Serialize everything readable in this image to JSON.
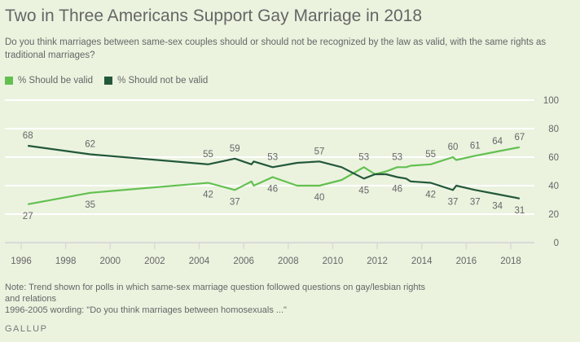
{
  "chart_data": {
    "type": "line",
    "title": "Two in Three Americans Support Gay Marriage in 2018",
    "subtitle": "Do you think marriages between same-sex couples should or should not be recognized by the law as valid, with the same rights as traditional marriages?",
    "xlim": [
      1996,
      2018
    ],
    "ylim": [
      0,
      100
    ],
    "xticks": [
      "1996",
      "1998",
      "2000",
      "2002",
      "2004",
      "2006",
      "2008",
      "2010",
      "2012",
      "2014",
      "2016",
      "2018"
    ],
    "yticks": [
      "0",
      "20",
      "40",
      "60",
      "80",
      "100"
    ],
    "grid": true,
    "legend_position": "top-left",
    "x": [
      1996.3,
      1999.1,
      2004.4,
      2005.6,
      2006.35,
      2006.45,
      2007.3,
      2008.4,
      2009.4,
      2010.4,
      2011.4,
      2011.9,
      2012.4,
      2012.9,
      2013.3,
      2013.5,
      2014.4,
      2015.4,
      2015.55,
      2016.4,
      2017.4,
      2018.4
    ],
    "series": [
      {
        "name": "% Should be valid",
        "color": "#63c050",
        "values": [
          27,
          35,
          42,
          37,
          43,
          40,
          46,
          40,
          40,
          44,
          53,
          48,
          50,
          53,
          53,
          54,
          55,
          60,
          58,
          61,
          64,
          67
        ],
        "data_labels": [
          "27",
          "35",
          "42",
          "37",
          null,
          null,
          "46",
          null,
          "40",
          null,
          "53",
          null,
          null,
          "53",
          null,
          null,
          "55",
          "60",
          null,
          "61",
          "64",
          "67"
        ]
      },
      {
        "name": "% Should not be valid",
        "color": "#23583a",
        "values": [
          68,
          62,
          55,
          59,
          55,
          57,
          53,
          56,
          57,
          53,
          45,
          48,
          48,
          46,
          45,
          43,
          42,
          37,
          40,
          37,
          34,
          31
        ],
        "data_labels": [
          "68",
          "62",
          "55",
          "59",
          null,
          null,
          "53",
          null,
          "57",
          null,
          "45",
          null,
          null,
          "46",
          null,
          null,
          "42",
          "37",
          null,
          "37",
          "34",
          "31"
        ]
      }
    ]
  },
  "note": {
    "line1": "Note: Trend shown for polls in which same-sex marriage question followed questions on gay/lesbian rights and relations",
    "line2": "1996-2005 wording: \"Do you think marriages between homosexuals ...\""
  },
  "logo": "GALLUP"
}
